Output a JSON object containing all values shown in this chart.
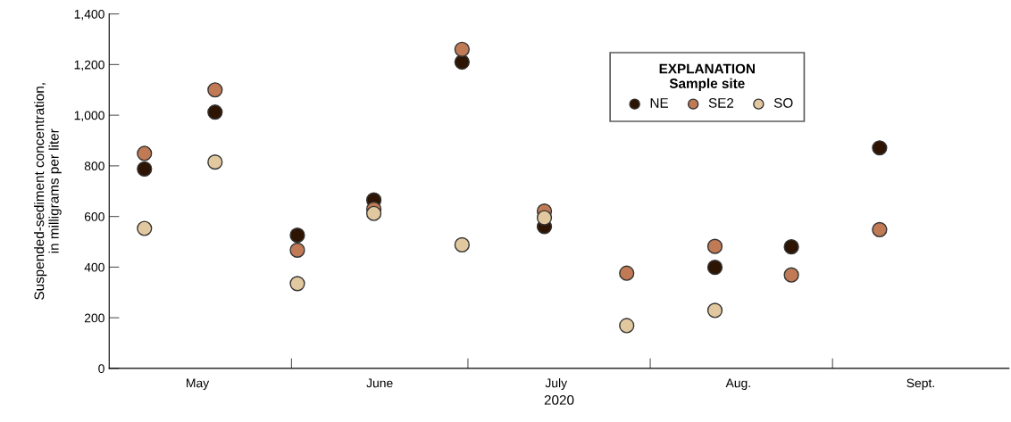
{
  "chart_data": {
    "type": "scatter",
    "xlabel": "2020",
    "ylabel": "Suspended-sediment concentration,\nin milligrams per liter",
    "legend_title": "EXPLANATION\nSample site",
    "x": [
      "2020-05-07",
      "2020-05-19",
      "2020-06-02",
      "2020-06-15",
      "2020-06-30",
      "2020-07-14",
      "2020-07-28",
      "2020-08-12",
      "2020-08-25",
      "2020-09-09"
    ],
    "series": [
      {
        "name": "NE",
        "color": "#2e1503",
        "values": [
          788,
          1012,
          526,
          665,
          1210,
          560,
          null,
          399,
          480,
          871
        ]
      },
      {
        "name": "SE2",
        "color": "#c07a55",
        "values": [
          849,
          1100,
          467,
          629,
          1260,
          621,
          376,
          482,
          369,
          548
        ]
      },
      {
        "name": "SO",
        "color": "#e2c89f",
        "values": [
          553,
          815,
          335,
          612,
          488,
          595,
          169,
          229,
          null,
          null
        ]
      }
    ],
    "marker": "circle",
    "legend": "top right",
    "grid": false,
    "xlim": [
      "2020-05-01",
      "2020-10-01"
    ],
    "xticks": [
      {
        "value": "2020-05-16",
        "label": "May"
      },
      {
        "value": "2020-06-01",
        "label": null
      },
      {
        "value": "2020-06-16",
        "label": "June"
      },
      {
        "value": "2020-07-01",
        "label": null
      },
      {
        "value": "2020-07-16",
        "label": "July"
      },
      {
        "value": "2020-08-01",
        "label": null
      },
      {
        "value": "2020-08-16",
        "label": "Aug."
      },
      {
        "value": "2020-09-01",
        "label": null
      },
      {
        "value": "2020-09-16",
        "label": "Sept."
      }
    ],
    "ylim": [
      0,
      1400
    ],
    "yticks": [
      0,
      200,
      400,
      600,
      800,
      {
        "value": 1000,
        "label": "1,000"
      },
      {
        "value": 1200,
        "label": "1,200"
      },
      {
        "value": 1400,
        "label": "1,400"
      }
    ]
  }
}
